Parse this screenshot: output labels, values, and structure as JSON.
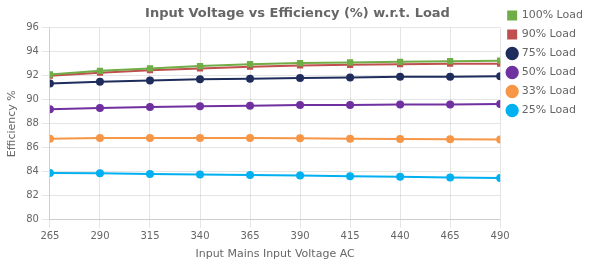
{
  "chart_data": {
    "type": "line",
    "title": "Input Voltage vs Efficiency (%) w.r.t. Load",
    "x_label": "Input Mains Input Voltage AC",
    "y_label": "Efficiency %",
    "x": [
      265,
      290,
      315,
      340,
      365,
      390,
      415,
      440,
      465,
      490
    ],
    "series": [
      {
        "name": "100% Load",
        "color": "#70ad47",
        "marker": "square",
        "values": [
          92.1,
          92.4,
          92.6,
          92.8,
          92.95,
          93.05,
          93.1,
          93.15,
          93.2,
          93.25
        ]
      },
      {
        "name": "90% Load",
        "color": "#c0504d",
        "marker": "square",
        "values": [
          92.0,
          92.25,
          92.45,
          92.6,
          92.75,
          92.85,
          92.9,
          92.95,
          93.0,
          93.0
        ]
      },
      {
        "name": "75% Load",
        "color": "#1f2d5c",
        "marker": "circle",
        "values": [
          91.35,
          91.5,
          91.6,
          91.7,
          91.75,
          91.8,
          91.85,
          91.9,
          91.9,
          91.95
        ]
      },
      {
        "name": "50% Load",
        "color": "#7030a0",
        "marker": "circle",
        "values": [
          89.2,
          89.3,
          89.4,
          89.45,
          89.5,
          89.55,
          89.55,
          89.6,
          89.6,
          89.65
        ]
      },
      {
        "name": "33% Load",
        "color": "#f79646",
        "marker": "circle",
        "values": [
          86.75,
          86.8,
          86.8,
          86.8,
          86.8,
          86.78,
          86.75,
          86.72,
          86.7,
          86.68
        ]
      },
      {
        "name": "25% Load",
        "color": "#00b0f0",
        "marker": "circle",
        "values": [
          83.9,
          83.88,
          83.82,
          83.78,
          83.72,
          83.68,
          83.62,
          83.58,
          83.52,
          83.48
        ]
      }
    ],
    "xlim": [
      265,
      490
    ],
    "xticks": [
      265,
      290,
      315,
      340,
      365,
      390,
      415,
      440,
      465,
      490
    ],
    "ylim": [
      80,
      96
    ],
    "yticks": [
      80,
      82,
      84,
      86,
      88,
      90,
      92,
      94,
      96
    ],
    "grid": true,
    "legend": "right"
  }
}
